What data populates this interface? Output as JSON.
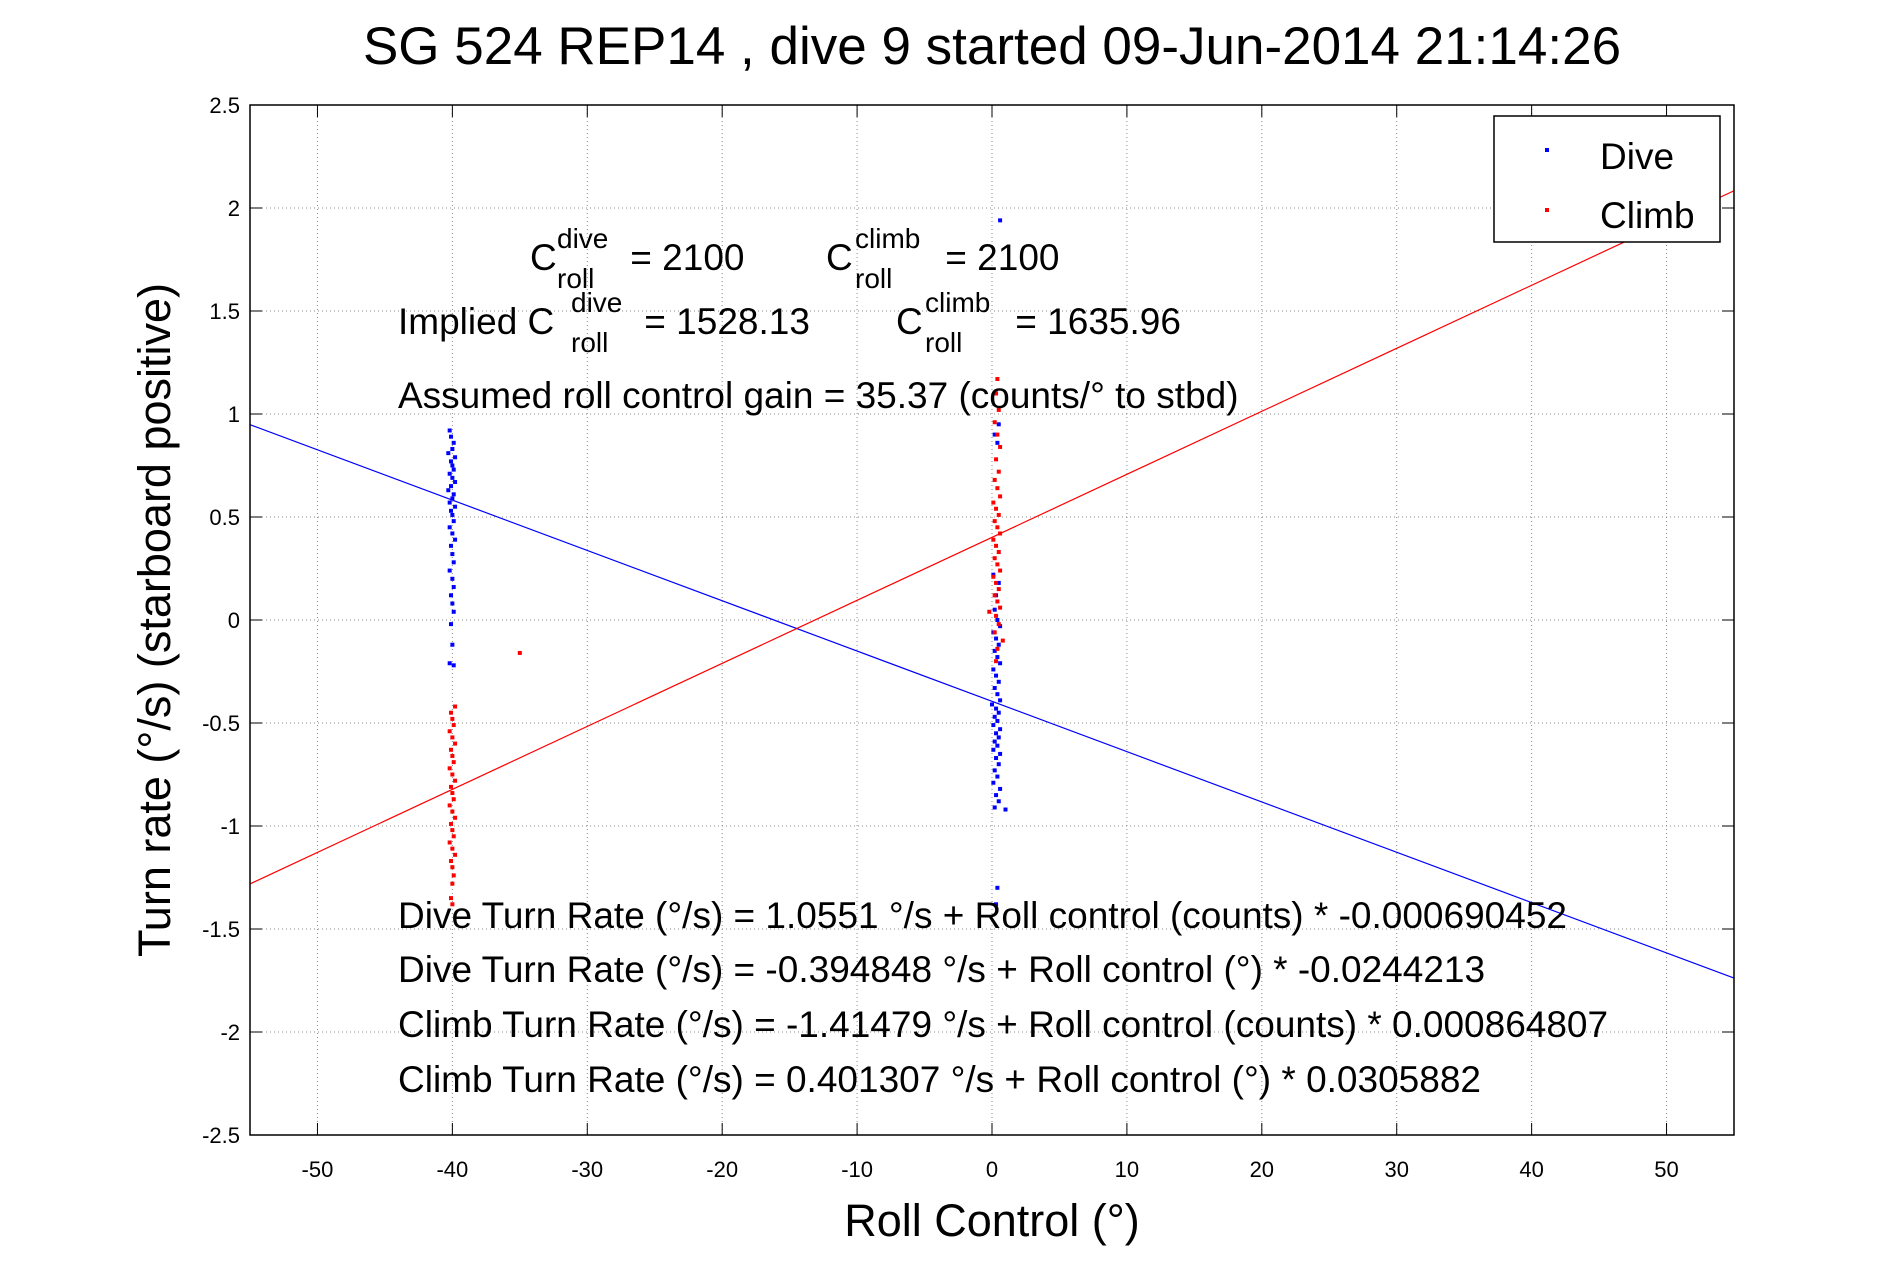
{
  "chart_data": {
    "type": "scatter",
    "title": "SG 524   REP14  , dive 9 started 09-Jun-2014 21:14:26",
    "xlabel": "Roll Control (°)",
    "ylabel": "Turn rate (°/s)  (starboard positive)",
    "xlim": [
      -55,
      55
    ],
    "ylim": [
      -2.5,
      2.5
    ],
    "x_ticks": [
      -50,
      -40,
      -30,
      -20,
      -10,
      0,
      10,
      20,
      30,
      40,
      50
    ],
    "y_ticks": [
      -2.5,
      -2,
      -1.5,
      -1,
      -0.5,
      0,
      0.5,
      1,
      1.5,
      2,
      2.5
    ],
    "x_tick_labels": [
      "-50",
      "-40",
      "-30",
      "-20",
      "-10",
      "0",
      "10",
      "20",
      "30",
      "40",
      "50"
    ],
    "y_tick_labels": [
      "-2.5",
      "-2",
      "-1.5",
      "-1",
      "-0.5",
      "0",
      "0.5",
      "1",
      "1.5",
      "2",
      "2.5"
    ],
    "grid": true,
    "legend_position": "top-right",
    "series": [
      {
        "name": "Dive",
        "color": "#0000ff",
        "points": [
          [
            -40.2,
            0.92
          ],
          [
            -40.1,
            0.89
          ],
          [
            -39.9,
            0.86
          ],
          [
            -40.0,
            0.83
          ],
          [
            -40.3,
            0.81
          ],
          [
            -39.8,
            0.79
          ],
          [
            -40.1,
            0.77
          ],
          [
            -40.0,
            0.75
          ],
          [
            -39.9,
            0.73
          ],
          [
            -40.2,
            0.71
          ],
          [
            -40.0,
            0.69
          ],
          [
            -39.8,
            0.67
          ],
          [
            -40.1,
            0.65
          ],
          [
            -40.3,
            0.63
          ],
          [
            -39.9,
            0.61
          ],
          [
            -40.0,
            0.59
          ],
          [
            -40.2,
            0.57
          ],
          [
            -39.8,
            0.55
          ],
          [
            -40.1,
            0.53
          ],
          [
            -40.0,
            0.51
          ],
          [
            -39.9,
            0.48
          ],
          [
            -40.2,
            0.45
          ],
          [
            -40.0,
            0.42
          ],
          [
            -39.8,
            0.39
          ],
          [
            -40.1,
            0.36
          ],
          [
            -40.0,
            0.32
          ],
          [
            -39.9,
            0.28
          ],
          [
            -40.2,
            0.24
          ],
          [
            -40.0,
            0.2
          ],
          [
            -39.9,
            0.16
          ],
          [
            -40.1,
            0.12
          ],
          [
            -40.0,
            0.08
          ],
          [
            -39.9,
            0.04
          ],
          [
            -40.1,
            -0.02
          ],
          [
            -40.0,
            -0.12
          ],
          [
            -40.2,
            -0.21
          ],
          [
            -39.9,
            -0.22
          ],
          [
            0.6,
            1.94
          ],
          [
            0.3,
            1.1
          ],
          [
            0.5,
            0.95
          ],
          [
            0.2,
            0.9
          ],
          [
            0.4,
            0.86
          ],
          [
            0.1,
            0.22
          ],
          [
            0.5,
            0.18
          ],
          [
            0.3,
            0.12
          ],
          [
            0.2,
            0.05
          ],
          [
            0.4,
            0.0
          ],
          [
            0.6,
            -0.03
          ],
          [
            0.1,
            -0.06
          ],
          [
            0.3,
            -0.09
          ],
          [
            0.5,
            -0.12
          ],
          [
            0.2,
            -0.15
          ],
          [
            0.4,
            -0.18
          ],
          [
            0.6,
            -0.21
          ],
          [
            0.1,
            -0.24
          ],
          [
            0.3,
            -0.27
          ],
          [
            0.5,
            -0.3
          ],
          [
            0.2,
            -0.33
          ],
          [
            0.4,
            -0.36
          ],
          [
            0.6,
            -0.39
          ],
          [
            0.0,
            -0.41
          ],
          [
            0.3,
            -0.43
          ],
          [
            0.5,
            -0.45
          ],
          [
            0.2,
            -0.47
          ],
          [
            0.4,
            -0.49
          ],
          [
            0.1,
            -0.51
          ],
          [
            0.6,
            -0.53
          ],
          [
            0.3,
            -0.55
          ],
          [
            0.5,
            -0.57
          ],
          [
            0.2,
            -0.59
          ],
          [
            0.4,
            -0.61
          ],
          [
            0.1,
            -0.63
          ],
          [
            0.6,
            -0.65
          ],
          [
            0.3,
            -0.67
          ],
          [
            0.5,
            -0.7
          ],
          [
            0.2,
            -0.73
          ],
          [
            0.4,
            -0.76
          ],
          [
            0.1,
            -0.79
          ],
          [
            0.6,
            -0.82
          ],
          [
            0.3,
            -0.85
          ],
          [
            0.5,
            -0.88
          ],
          [
            0.2,
            -0.91
          ],
          [
            1.0,
            -0.92
          ],
          [
            0.4,
            -1.3
          ],
          [
            0.3,
            -1.38
          ]
        ]
      },
      {
        "name": "Climb",
        "color": "#ff0000",
        "points": [
          [
            -35.0,
            -0.16
          ],
          [
            -39.8,
            -0.42
          ],
          [
            -40.1,
            -0.45
          ],
          [
            -40.0,
            -0.48
          ],
          [
            -39.9,
            -0.51
          ],
          [
            -40.2,
            -0.54
          ],
          [
            -40.0,
            -0.57
          ],
          [
            -39.8,
            -0.6
          ],
          [
            -40.1,
            -0.63
          ],
          [
            -40.0,
            -0.66
          ],
          [
            -39.9,
            -0.69
          ],
          [
            -40.2,
            -0.72
          ],
          [
            -40.0,
            -0.75
          ],
          [
            -39.8,
            -0.78
          ],
          [
            -40.1,
            -0.81
          ],
          [
            -40.0,
            -0.84
          ],
          [
            -39.9,
            -0.87
          ],
          [
            -40.2,
            -0.9
          ],
          [
            -40.0,
            -0.93
          ],
          [
            -39.8,
            -0.96
          ],
          [
            -40.1,
            -0.99
          ],
          [
            -40.0,
            -1.02
          ],
          [
            -39.9,
            -1.05
          ],
          [
            -40.2,
            -1.08
          ],
          [
            -40.0,
            -1.11
          ],
          [
            -39.8,
            -1.14
          ],
          [
            -40.1,
            -1.17
          ],
          [
            -40.0,
            -1.2
          ],
          [
            -39.9,
            -1.24
          ],
          [
            -40.0,
            -1.28
          ],
          [
            -40.1,
            -1.35
          ],
          [
            -40.0,
            -1.38
          ],
          [
            0.4,
            1.17
          ],
          [
            0.3,
            1.1
          ],
          [
            0.5,
            1.02
          ],
          [
            0.2,
            0.96
          ],
          [
            0.4,
            0.9
          ],
          [
            0.6,
            0.84
          ],
          [
            0.3,
            0.78
          ],
          [
            0.5,
            0.72
          ],
          [
            0.2,
            0.68
          ],
          [
            0.4,
            0.64
          ],
          [
            0.6,
            0.6
          ],
          [
            0.1,
            0.57
          ],
          [
            0.3,
            0.54
          ],
          [
            0.5,
            0.51
          ],
          [
            0.2,
            0.48
          ],
          [
            0.4,
            0.45
          ],
          [
            0.6,
            0.42
          ],
          [
            0.1,
            0.39
          ],
          [
            0.3,
            0.36
          ],
          [
            0.5,
            0.33
          ],
          [
            0.2,
            0.3
          ],
          [
            0.4,
            0.27
          ],
          [
            0.6,
            0.24
          ],
          [
            0.1,
            0.21
          ],
          [
            0.3,
            0.18
          ],
          [
            0.5,
            0.15
          ],
          [
            0.2,
            0.12
          ],
          [
            0.4,
            0.09
          ],
          [
            0.6,
            0.06
          ],
          [
            -0.2,
            0.04
          ],
          [
            0.3,
            0.02
          ],
          [
            0.5,
            -0.02
          ],
          [
            0.2,
            -0.06
          ],
          [
            0.8,
            -0.1
          ],
          [
            0.4,
            -0.14
          ],
          [
            0.3,
            -0.2
          ]
        ]
      }
    ],
    "fit_lines": [
      {
        "series": "Dive",
        "intercept": -0.394848,
        "slope": -0.0244213,
        "color": "#0000ff"
      },
      {
        "series": "Climb",
        "intercept": 0.401307,
        "slope": 0.0305882,
        "color": "#ff0000"
      }
    ],
    "annotations": {
      "c_roll_dive": {
        "base": "C",
        "sup": "dive",
        "sub": "roll",
        "rest": " = 2100"
      },
      "c_roll_climb": {
        "base": "C",
        "sup": "climb",
        "sub": "roll",
        "rest": " = 2100"
      },
      "implied_dive": {
        "prefix": "Implied C",
        "sup": "dive",
        "sub": "roll",
        "rest": " = 1528.13"
      },
      "implied_climb": {
        "base": "C",
        "sup": "climb",
        "sub": "roll",
        "rest": " = 1635.96"
      },
      "gain": "Assumed roll control gain = 35.37 (counts/° to stbd)",
      "eq_dive_counts": "Dive Turn Rate (°/s) = 1.0551 °/s + Roll control (counts) * -0.000690452",
      "eq_dive_deg": "Dive Turn Rate (°/s) = -0.394848 °/s + Roll control (°) * -0.0244213",
      "eq_climb_counts": "Climb Turn Rate (°/s) = -1.41479 °/s + Roll control (counts) * 0.000864807",
      "eq_climb_deg": "Climb Turn Rate (°/s) = 0.401307 °/s + Roll control (°) * 0.0305882"
    }
  }
}
